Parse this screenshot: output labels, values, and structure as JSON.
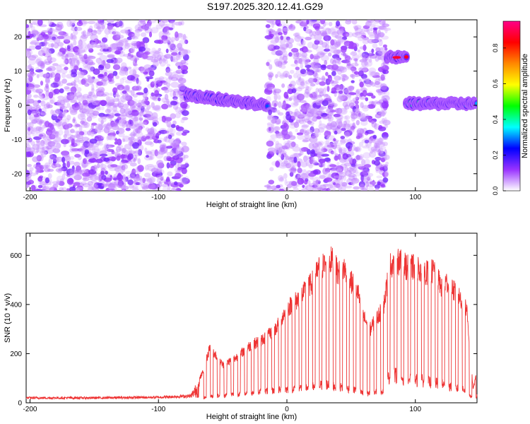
{
  "figure_title": "S197.2025.320.12.41.G29",
  "chart_data": [
    {
      "type": "heatmap",
      "xlabel": "Height of straight line (km)",
      "ylabel": "Frequency (Hz)",
      "xlim": [
        -203,
        148
      ],
      "ylim": [
        -25,
        25
      ],
      "xticks": [
        -200,
        -100,
        0,
        100
      ],
      "yticks": [
        -20,
        -10,
        0,
        10,
        20
      ],
      "colorbar": {
        "label": "Normalized spectral amplitude",
        "range": [
          0.0,
          0.95
        ],
        "ticks": [
          0.0,
          0.2,
          0.4,
          0.6,
          0.8
        ],
        "colors": [
          "#ffffff",
          "#9933ff",
          "#0000ff",
          "#00ffff",
          "#00ff00",
          "#ffff00",
          "#ff8800",
          "#ff0000",
          "#ff0088"
        ]
      },
      "features": [
        {
          "name": "scattered noise",
          "x_range": [
            -203,
            -78
          ],
          "y_range": [
            -25,
            25
          ],
          "level": 0.05
        },
        {
          "name": "tone",
          "x_range": [
            -78,
            -15
          ],
          "freq_start": 3,
          "freq_end": 0,
          "level": 0.3
        },
        {
          "name": "scattered noise",
          "x_range": [
            -15,
            78
          ],
          "y_range": [
            -25,
            25
          ],
          "level": 0.05
        },
        {
          "name": "tone",
          "x_range": [
            78,
            93
          ],
          "freq_start": 14,
          "freq_end": 14,
          "level": 0.85
        },
        {
          "name": "tone",
          "x_range": [
            93,
            148
          ],
          "freq_start": 0.5,
          "freq_end": 0.5,
          "level": 0.4
        }
      ]
    },
    {
      "type": "line",
      "xlabel": "Height of straight line (km)",
      "ylabel": "SNR (10 * v/v)",
      "xlim": [
        -203,
        148
      ],
      "ylim": [
        0,
        690
      ],
      "xticks": [
        -200,
        -100,
        0,
        100
      ],
      "yticks": [
        0,
        200,
        400,
        600
      ],
      "color": "#ee3333",
      "envelope": {
        "x": [
          -203,
          -150,
          -100,
          -75,
          -65,
          -60,
          -50,
          -40,
          -30,
          -20,
          -10,
          0,
          10,
          20,
          25,
          30,
          35,
          40,
          45,
          50,
          55,
          60,
          65,
          70,
          75,
          80,
          85,
          90,
          95,
          100,
          105,
          110,
          115,
          120,
          125,
          130,
          135,
          140,
          145,
          148
        ],
        "peak": [
          25,
          25,
          28,
          35,
          140,
          250,
          170,
          200,
          250,
          280,
          320,
          420,
          470,
          540,
          600,
          620,
          640,
          580,
          600,
          540,
          500,
          380,
          330,
          380,
          420,
          610,
          640,
          620,
          600,
          610,
          590,
          580,
          590,
          520,
          540,
          500,
          470,
          420,
          60,
          140
        ],
        "base": [
          15,
          15,
          17,
          20,
          20,
          25,
          30,
          35,
          40,
          45,
          50,
          55,
          60,
          65,
          70,
          75,
          70,
          65,
          60,
          55,
          50,
          35,
          40,
          45,
          50,
          110,
          110,
          100,
          95,
          90,
          90,
          85,
          80,
          75,
          70,
          60,
          55,
          50,
          10,
          30
        ]
      }
    }
  ]
}
